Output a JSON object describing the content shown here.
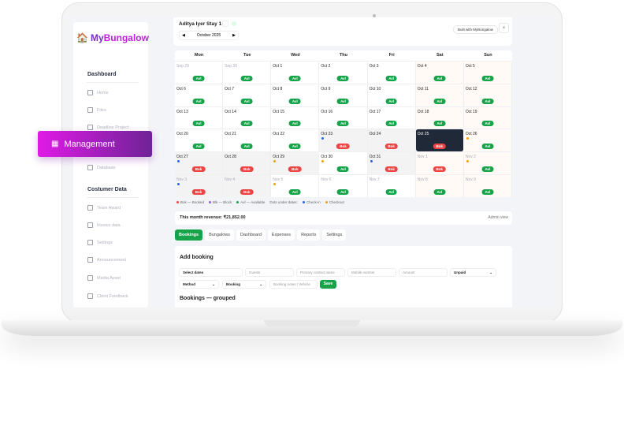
{
  "brand": {
    "name_a": "My",
    "name_b": "Bungalow"
  },
  "sidebar": {
    "section1": "Dashboard",
    "items1": [
      "Home",
      "Files",
      "Deadline Project"
    ],
    "active": "Management",
    "items1b": [
      "Database"
    ],
    "section2": "Costumer Data",
    "items2": [
      "Team Award",
      "Invoice data",
      "Settings",
      "Announcement",
      "Media Asset",
      "Client Feedback"
    ]
  },
  "header": {
    "title": "Aditya Iyer Stay 1",
    "month": "October 2025",
    "built_with": "Built with MyBungalow",
    "close": "×",
    "prev": "◀",
    "next": "▶"
  },
  "calendar": {
    "weekdays": [
      "Mon",
      "Tue",
      "Wed",
      "Thu",
      "Fri",
      "Sat",
      "Sun"
    ],
    "days": [
      {
        "d": "Sep 29",
        "s": "Avl",
        "m": 1
      },
      {
        "d": "Sep 30",
        "s": "Avl",
        "m": 1
      },
      {
        "d": "Oct 1",
        "s": "Avl"
      },
      {
        "d": "Oct 2",
        "s": "Avl"
      },
      {
        "d": "Oct 3",
        "s": "Avl"
      },
      {
        "d": "Oct 4",
        "s": "Avl"
      },
      {
        "d": "Oct 5",
        "s": "Avl"
      },
      {
        "d": "Oct 6",
        "s": "Avl"
      },
      {
        "d": "Oct 7",
        "s": "Avl"
      },
      {
        "d": "Oct 8",
        "s": "Avl"
      },
      {
        "d": "Oct 9",
        "s": "Avl"
      },
      {
        "d": "Oct 10",
        "s": "Avl"
      },
      {
        "d": "Oct 11",
        "s": "Avl"
      },
      {
        "d": "Oct 12",
        "s": "Avl"
      },
      {
        "d": "Oct 13",
        "s": "Avl"
      },
      {
        "d": "Oct 14",
        "s": "Avl"
      },
      {
        "d": "Oct 15",
        "s": "Avl"
      },
      {
        "d": "Oct 16",
        "s": "Avl"
      },
      {
        "d": "Oct 17",
        "s": "Avl"
      },
      {
        "d": "Oct 18",
        "s": "Avl"
      },
      {
        "d": "Oct 19",
        "s": "Avl"
      },
      {
        "d": "Oct 20",
        "s": "Avl"
      },
      {
        "d": "Oct 21",
        "s": "Avl"
      },
      {
        "d": "Oct 22",
        "s": "Avl"
      },
      {
        "d": "Oct 23",
        "s": "Bok",
        "dot": "in"
      },
      {
        "d": "Oct 24",
        "s": "Bok"
      },
      {
        "d": "Oct 25",
        "s": "Bok",
        "sel": 1
      },
      {
        "d": "Oct 26",
        "s": "Avl",
        "dot": "out"
      },
      {
        "d": "Oct 27",
        "s": "Bok",
        "dot": "in"
      },
      {
        "d": "Oct 28",
        "s": "Bok"
      },
      {
        "d": "Oct 29",
        "s": "Bok",
        "dot": "out"
      },
      {
        "d": "Oct 30",
        "s": "Avl",
        "dot": "out"
      },
      {
        "d": "Oct 31",
        "s": "Bok",
        "dot": "in"
      },
      {
        "d": "Nov 1",
        "s": "Bok",
        "m": 1
      },
      {
        "d": "Nov 2",
        "s": "Avl",
        "m": 1,
        "dot": "out"
      },
      {
        "d": "Nov 3",
        "s": "Bok",
        "m": 1,
        "dot": "in"
      },
      {
        "d": "Nov 4",
        "s": "Bok",
        "m": 1
      },
      {
        "d": "Nov 5",
        "s": "Avl",
        "m": 1,
        "dot": "out"
      },
      {
        "d": "Nov 6",
        "s": "Avl",
        "m": 1
      },
      {
        "d": "Nov 7",
        "s": "Avl",
        "m": 1
      },
      {
        "d": "Nov 8",
        "s": "Avl",
        "m": 1
      },
      {
        "d": "Nov 9",
        "s": "Avl",
        "m": 1
      }
    ]
  },
  "legend": [
    "Bok — Booked",
    "Blk — Block",
    "Avl — Available",
    "Dots under dates:",
    "Check-in",
    "Checkout"
  ],
  "colors": {
    "booked": "#ef4444",
    "block": "#8b5cf6",
    "available": "#16a34a",
    "checkin": "#2563eb",
    "checkout": "#f59e0b",
    "brand": "#c01fe0"
  },
  "revenue": {
    "label": "This month revenue: ₹21,852.00",
    "view": "Admin view"
  },
  "tabs": [
    "Bookings",
    "Bungalows",
    "Dashboard",
    "Expenses",
    "Reports",
    "Settings"
  ],
  "form": {
    "title": "Add booking",
    "dates": "Select dates",
    "guests": "Guests",
    "contact": "Primary contact name",
    "mobile": "Mobile number",
    "amount": "Amount",
    "payment": "Unpaid",
    "method": "Method",
    "type": "Booking",
    "notes": "Booking notes / Vehicle",
    "save": "Save",
    "grouped": "Bookings — grouped"
  }
}
